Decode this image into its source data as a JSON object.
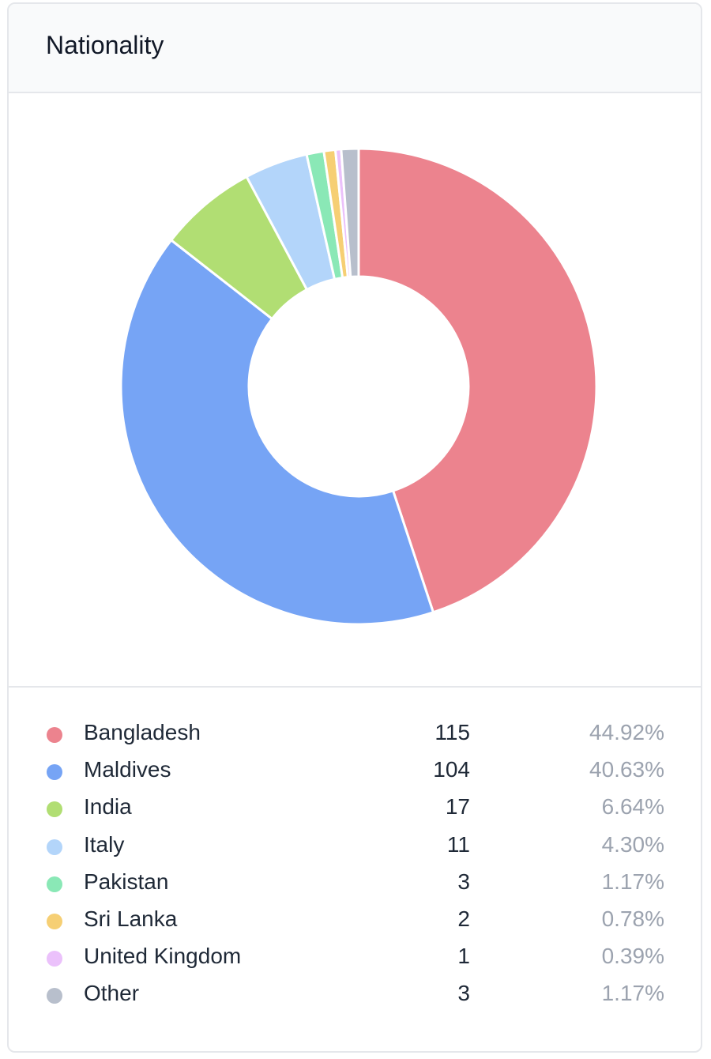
{
  "card": {
    "title": "Nationality"
  },
  "chart_data": {
    "type": "pie",
    "donut": true,
    "categories": [
      "Bangladesh",
      "Maldives",
      "India",
      "Italy",
      "Pakistan",
      "Sri Lanka",
      "United Kingdom",
      "Other"
    ],
    "values": [
      115,
      104,
      17,
      11,
      3,
      2,
      1,
      3
    ],
    "percentages": [
      "44.92%",
      "40.63%",
      "6.64%",
      "4.30%",
      "1.17%",
      "0.78%",
      "0.39%",
      "1.17%"
    ],
    "colors": [
      "#ec838e",
      "#76a4f5",
      "#b1de73",
      "#b3d5fa",
      "#8ae8b6",
      "#f6cf74",
      "#ebc1fb",
      "#b8bfcc"
    ],
    "legend": "bottom"
  },
  "legend": {
    "items": [
      {
        "label": "Bangladesh",
        "count": "115",
        "pct": "44.92%"
      },
      {
        "label": "Maldives",
        "count": "104",
        "pct": "40.63%"
      },
      {
        "label": "India",
        "count": "17",
        "pct": "6.64%"
      },
      {
        "label": "Italy",
        "count": "11",
        "pct": "4.30%"
      },
      {
        "label": "Pakistan",
        "count": "3",
        "pct": "1.17%"
      },
      {
        "label": "Sri Lanka",
        "count": "2",
        "pct": "0.78%"
      },
      {
        "label": "United Kingdom",
        "count": "1",
        "pct": "0.39%"
      },
      {
        "label": "Other",
        "count": "3",
        "pct": "1.17%"
      }
    ]
  }
}
